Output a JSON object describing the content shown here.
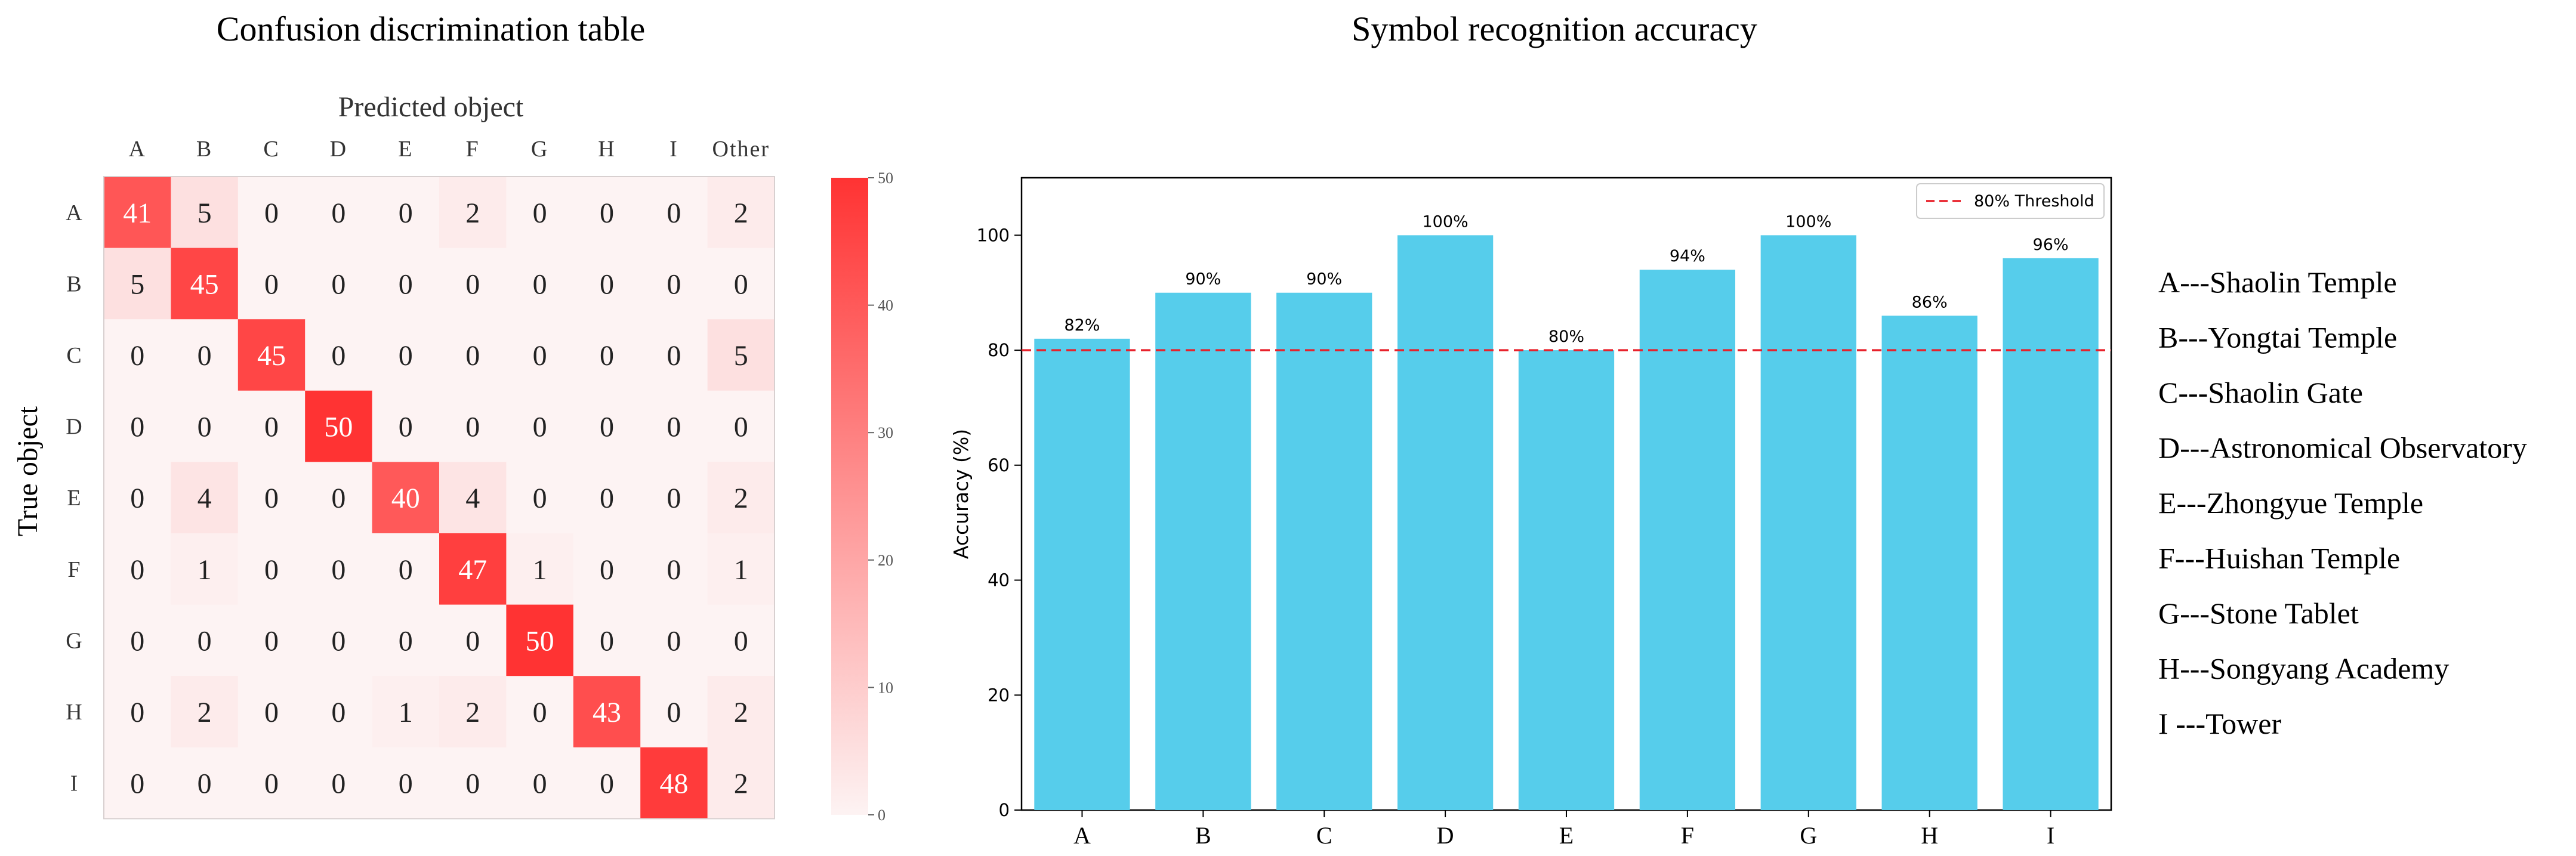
{
  "left_panel": {
    "title": "Confusion discrimination table",
    "xlabel": "Predicted object",
    "ylabel": "True object"
  },
  "right_panel": {
    "title": "Symbol recognition accuracy"
  },
  "legend_key": [
    "A---Shaolin Temple",
    "B---Yongtai Temple",
    "C---Shaolin Gate",
    "D---Astronomical Observatory",
    "E---Zhongyue Temple",
    "F---Huishan Temple",
    "G---Stone Tablet",
    "H---Songyang Academy",
    "I ---Tower"
  ],
  "colors": {
    "heatmap_max": "#ff3333",
    "heatmap_min": "#fdf3f3",
    "bar": "#56cdeb",
    "threshold": "#e8202a"
  },
  "chart_data": [
    {
      "type": "heatmap",
      "title": "Confusion discrimination table",
      "xlabel": "Predicted object",
      "ylabel": "True object",
      "x_categories": [
        "A",
        "B",
        "C",
        "D",
        "E",
        "F",
        "G",
        "H",
        "I",
        "Other"
      ],
      "y_categories": [
        "A",
        "B",
        "C",
        "D",
        "E",
        "F",
        "G",
        "H",
        "I"
      ],
      "values": [
        [
          41,
          5,
          0,
          0,
          0,
          2,
          0,
          0,
          0,
          2
        ],
        [
          5,
          45,
          0,
          0,
          0,
          0,
          0,
          0,
          0,
          0
        ],
        [
          0,
          0,
          45,
          0,
          0,
          0,
          0,
          0,
          0,
          5
        ],
        [
          0,
          0,
          0,
          50,
          0,
          0,
          0,
          0,
          0,
          0
        ],
        [
          0,
          4,
          0,
          0,
          40,
          4,
          0,
          0,
          0,
          2
        ],
        [
          0,
          1,
          0,
          0,
          0,
          47,
          1,
          0,
          0,
          1
        ],
        [
          0,
          0,
          0,
          0,
          0,
          0,
          50,
          0,
          0,
          0
        ],
        [
          0,
          2,
          0,
          0,
          1,
          2,
          0,
          43,
          0,
          2
        ],
        [
          0,
          0,
          0,
          0,
          0,
          0,
          0,
          0,
          48,
          2
        ]
      ],
      "colorbar": {
        "range": [
          0,
          50
        ],
        "ticks": [
          "0",
          "10",
          "20",
          "30",
          "40",
          "50"
        ]
      }
    },
    {
      "type": "bar",
      "title": "Symbol recognition accuracy",
      "ylabel": "Accuracy (%)",
      "categories": [
        "A",
        "B",
        "C",
        "D",
        "E",
        "F",
        "G",
        "H",
        "I"
      ],
      "values": [
        82,
        90,
        90,
        100,
        80,
        94,
        100,
        86,
        96
      ],
      "data_labels": [
        "82%",
        "90%",
        "90%",
        "100%",
        "80%",
        "94%",
        "100%",
        "86%",
        "96%"
      ],
      "ylim": [
        0,
        110
      ],
      "yticks": [
        "0",
        "20",
        "40",
        "60",
        "80",
        "100"
      ],
      "threshold": {
        "value": 80,
        "label": "80% Threshold"
      },
      "legend_position": "top-right",
      "grid": false
    }
  ]
}
